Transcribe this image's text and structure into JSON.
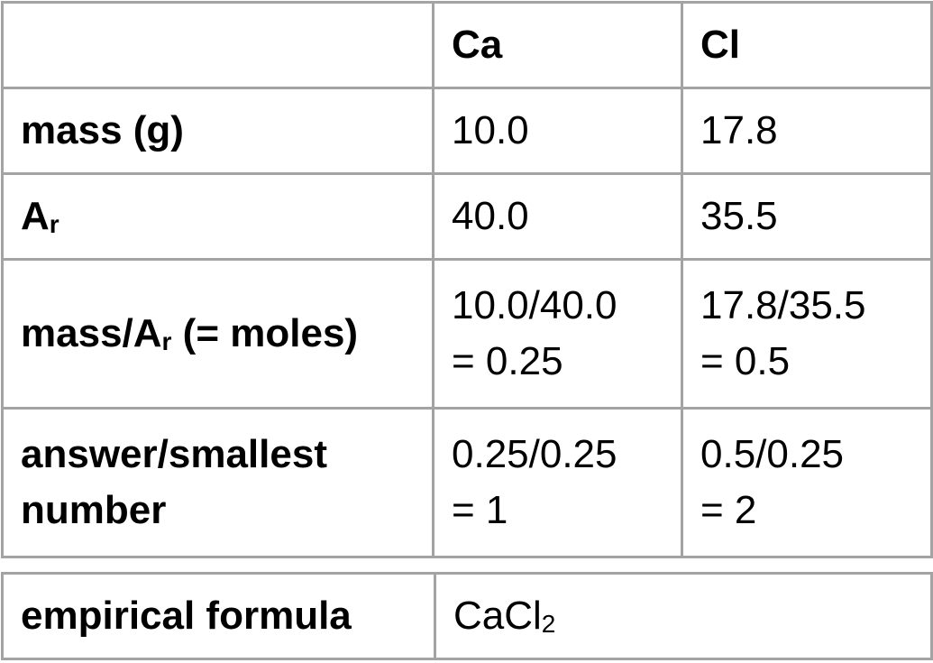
{
  "table": {
    "header": {
      "corner": "",
      "col1": "Ca",
      "col2": "Cl"
    },
    "rows": [
      {
        "label": "mass (g)",
        "c1": "10.0",
        "c2": "17.8"
      },
      {
        "label_main": "A",
        "label_sub": "r",
        "c1": "40.0",
        "c2": "35.5"
      },
      {
        "label_pre": "mass/A",
        "label_sub": "r",
        "label_post": " (= moles)",
        "c1_line1": "10.0/40.0",
        "c1_line2": "= 0.25",
        "c2_line1": "17.8/35.5",
        "c2_line2": "= 0.5"
      },
      {
        "label_line1": "answer/smallest",
        "label_line2": "number",
        "c1_line1": "0.25/0.25",
        "c1_line2": "= 1",
        "c2_line1": "0.5/0.25",
        "c2_line2": "= 2"
      }
    ],
    "final": {
      "label": "empirical formula",
      "value_main": "CaCl",
      "value_sub": "2"
    }
  },
  "colors": {
    "border": "#a3a3a3",
    "text": "#000000",
    "background": "#ffffff"
  }
}
